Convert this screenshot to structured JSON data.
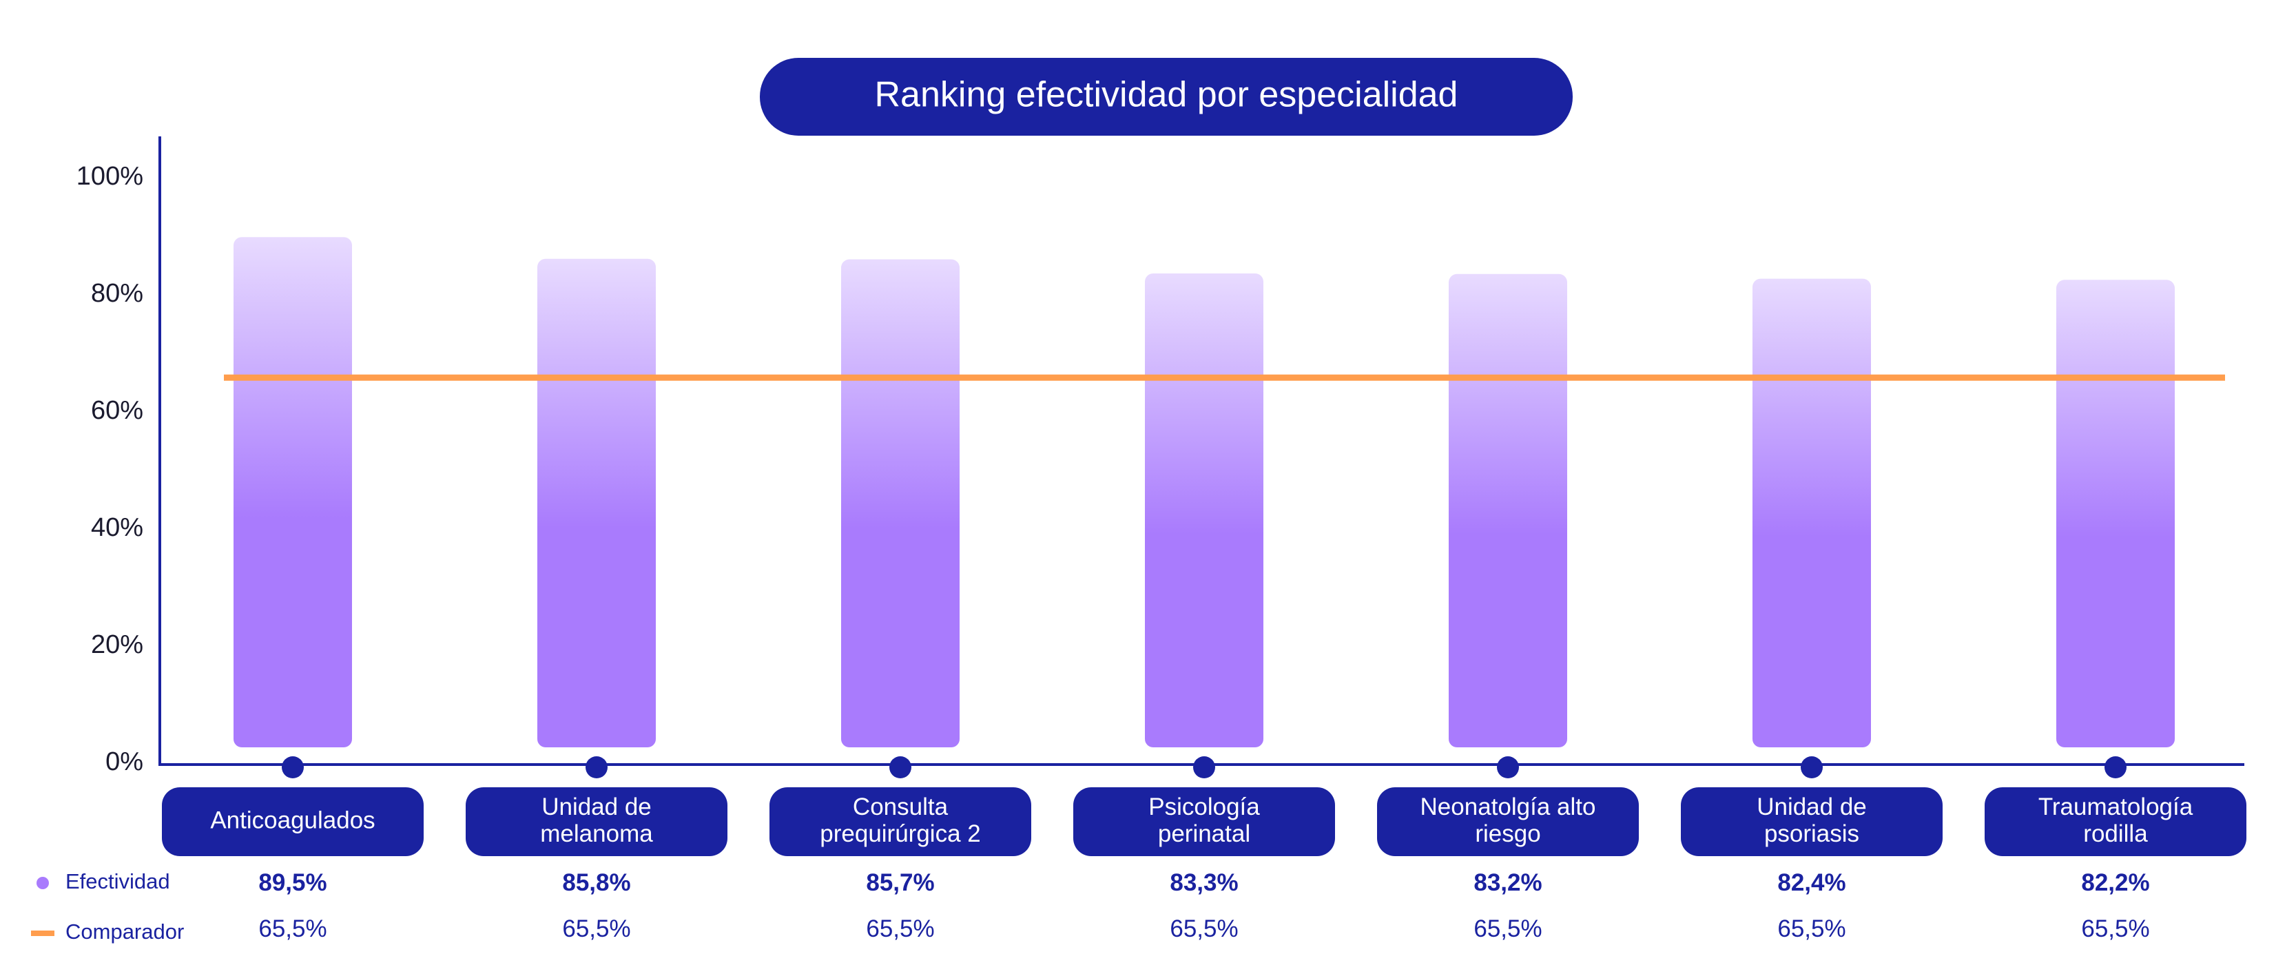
{
  "colors": {
    "axis": "#1a22a0",
    "pill": "#1a22a0",
    "bar_top": "#e8dbff",
    "bar_bottom": "#a97bfd",
    "comparator": "#ff9d4d",
    "legend_dot": "#a97bfd",
    "text_dark": "#1a1a2e"
  },
  "chart_data": {
    "type": "bar",
    "title": "Ranking efectividad por especialidad",
    "categories": [
      [
        "Anticoagulados"
      ],
      [
        "Unidad de",
        "melanoma"
      ],
      [
        "Consulta",
        "prequirúrgica 2"
      ],
      [
        "Psicología",
        "perinatal"
      ],
      [
        "Neonatolgía alto",
        "riesgo"
      ],
      [
        "Unidad de",
        "psoriasis"
      ],
      [
        "Traumatología",
        "rodilla"
      ]
    ],
    "series": [
      {
        "name": "Efectividad",
        "values": [
          89.5,
          85.8,
          85.7,
          83.3,
          83.2,
          82.4,
          82.2
        ],
        "labels": [
          "89,5%",
          "85,8%",
          "85,7%",
          "83,3%",
          "83,2%",
          "82,4%",
          "82,2%"
        ]
      },
      {
        "name": "Comparador",
        "values": [
          65.5,
          65.5,
          65.5,
          65.5,
          65.5,
          65.5,
          65.5
        ],
        "labels": [
          "65,5%",
          "65,5%",
          "65,5%",
          "65,5%",
          "65,5%",
          "65,5%",
          "65,5%"
        ]
      }
    ],
    "yticks": [
      0,
      20,
      40,
      60,
      80,
      100
    ],
    "ytick_labels": [
      "0%",
      "20%",
      "40%",
      "60%",
      "80%",
      "100%"
    ],
    "ylim": [
      0,
      100
    ],
    "legend_position": "bottom-left"
  }
}
